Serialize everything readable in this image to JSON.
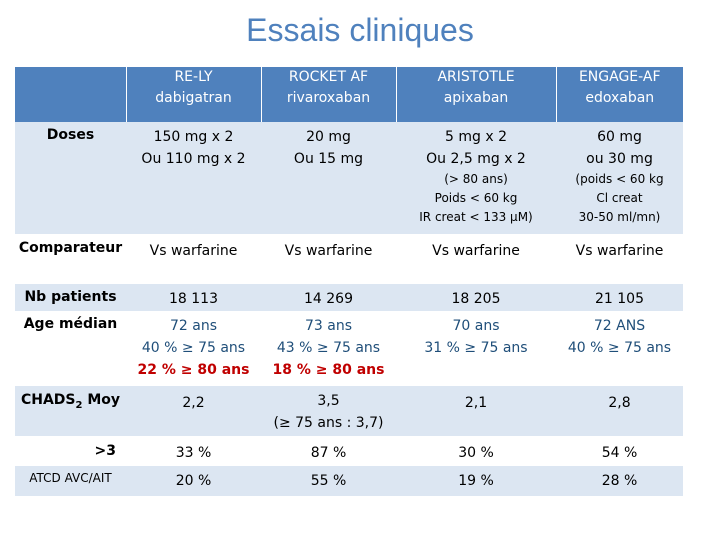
{
  "title": "Essais cliniques",
  "header": [
    {
      "name": "RE-LY",
      "drug": "dabigatran"
    },
    {
      "name": "ROCKET AF",
      "drug": "rivaroxaban"
    },
    {
      "name": "ARISTOTLE",
      "drug": "apixaban"
    },
    {
      "name": "ENGAGE-AF",
      "drug": "edoxaban"
    }
  ],
  "rows": {
    "doses": {
      "label": "Doses",
      "c1": [
        "150 mg x 2",
        "Ou 110 mg x 2"
      ],
      "c2": [
        "20 mg",
        "Ou 15 mg"
      ],
      "c3": [
        "5 mg x 2",
        "Ou 2,5 mg x 2"
      ],
      "c3_note": [
        "(> 80 ans)",
        "Poids < 60 kg",
        "IR creat < 133 µM)"
      ],
      "c4": [
        "60 mg",
        "ou 30 mg"
      ],
      "c4_note": [
        "(poids < 60 kg",
        "Cl creat",
        "30-50 ml/mn)"
      ]
    },
    "comparateur": {
      "label": "Comparateur",
      "values": [
        "Vs warfarine",
        "Vs warfarine",
        "Vs warfarine",
        "Vs warfarine"
      ]
    },
    "nb_patients": {
      "label": "Nb patients",
      "values": [
        "18 113",
        "14 269",
        "18 205",
        "21 105"
      ]
    },
    "age": {
      "label": "Age médian",
      "c1": [
        "72 ans",
        "40 % ≥ 75 ans",
        "22 % ≥ 80 ans"
      ],
      "c2": [
        "73 ans",
        "43 % ≥ 75 ans",
        "18 % ≥ 80 ans"
      ],
      "c3": [
        "70 ans",
        "31 % ≥ 75 ans"
      ],
      "c4": [
        "72 ANS",
        "40 % ≥ 75 ans"
      ]
    },
    "chads": {
      "label_main": "CHADS",
      "label_sub": "2",
      "label_end": " Moy",
      "c1": "2,2",
      "c2": [
        "3,5",
        "(≥ 75 ans : 3,7)"
      ],
      "c3": "2,1",
      "c4": "2,8"
    },
    "gt3": {
      "label": ">3",
      "values": [
        "33 %",
        "87 %",
        "30 %",
        "54 %"
      ]
    },
    "atcd": {
      "label": "ATCD AVC/AIT",
      "values": [
        "20 %",
        "55 %",
        "19 %",
        "28 %"
      ]
    }
  },
  "colors": {
    "header_bg": "#4f81bd",
    "stripe": "#dce6f2",
    "emphasis": "#c00000",
    "title": "#4f81bd"
  }
}
